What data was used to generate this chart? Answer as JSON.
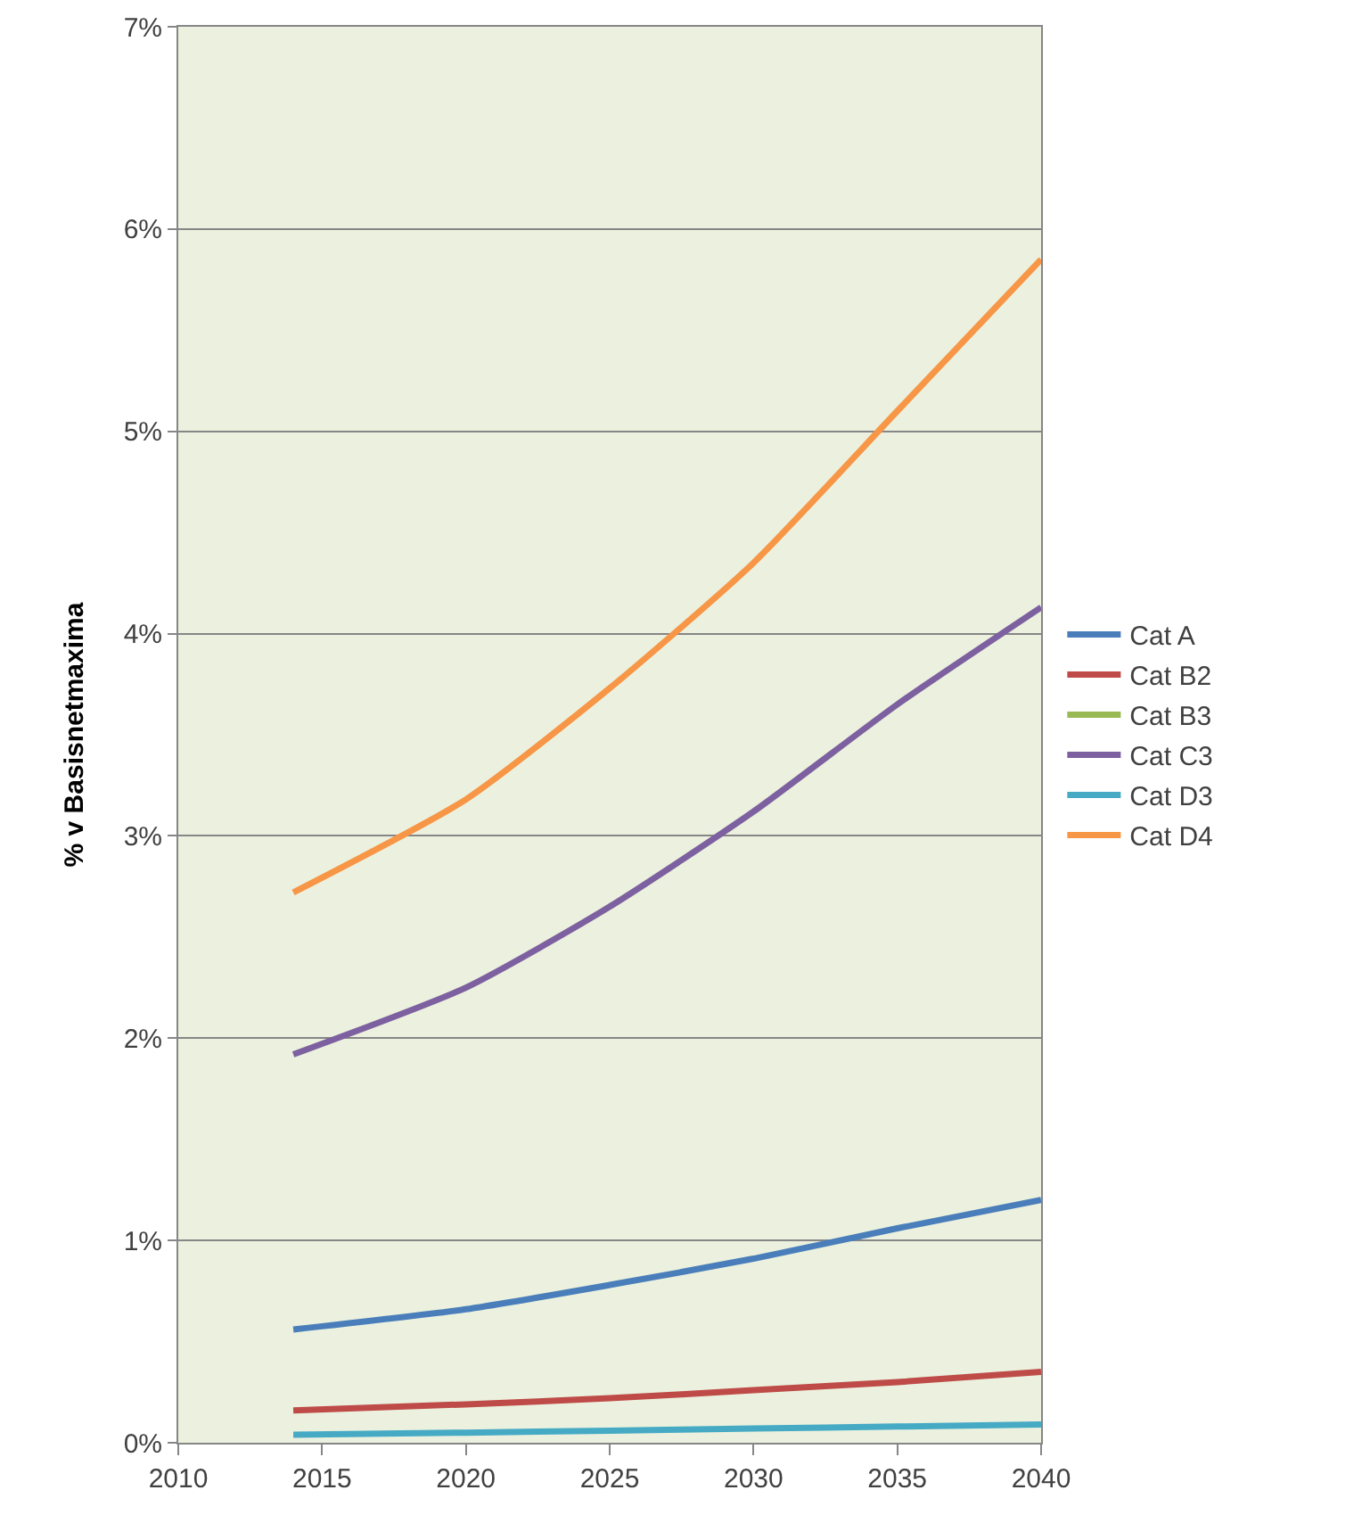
{
  "chart_data": {
    "type": "line",
    "ylabel": "% v Basisnetmaxima",
    "x": [
      2014,
      2020,
      2025,
      2030,
      2035,
      2040
    ],
    "series": [
      {
        "name": "Cat A",
        "color": "#4a7ebb",
        "values": [
          0.56,
          0.66,
          0.78,
          0.91,
          1.06,
          1.2
        ]
      },
      {
        "name": "Cat B2",
        "color": "#be4b48",
        "values": [
          0.16,
          0.19,
          0.22,
          0.26,
          0.3,
          0.35
        ]
      },
      {
        "name": "Cat B3",
        "color": "#98b954",
        "values": [
          null,
          null,
          null,
          null,
          null,
          null
        ]
      },
      {
        "name": "Cat C3",
        "color": "#7d60a0",
        "values": [
          1.92,
          2.25,
          2.65,
          3.12,
          3.65,
          4.13
        ]
      },
      {
        "name": "Cat D3",
        "color": "#46aac5",
        "values": [
          0.04,
          0.05,
          0.06,
          0.07,
          0.08,
          0.09
        ]
      },
      {
        "name": "Cat D4",
        "color": "#f79646",
        "values": [
          2.72,
          3.18,
          3.73,
          4.35,
          5.1,
          5.85
        ]
      }
    ],
    "xlim": [
      2010,
      2040
    ],
    "xticks": [
      2010,
      2015,
      2020,
      2025,
      2030,
      2035,
      2040
    ],
    "ylim": [
      0,
      7
    ],
    "yticks": [
      {
        "value": 0,
        "label": "0%"
      },
      {
        "value": 1,
        "label": "1%"
      },
      {
        "value": 2,
        "label": "2%"
      },
      {
        "value": 3,
        "label": "3%"
      },
      {
        "value": 4,
        "label": "4%"
      },
      {
        "value": 5,
        "label": "5%"
      },
      {
        "value": 6,
        "label": "6%"
      },
      {
        "value": 7,
        "label": "7%"
      }
    ],
    "grid": "y",
    "legend": "right",
    "marker": "none",
    "line_style": "solid"
  }
}
